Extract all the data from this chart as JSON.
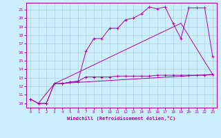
{
  "xlabel": "Windchill (Refroidissement éolien,°C)",
  "bg_color": "#cceeff",
  "grid_color": "#aacccc",
  "line_color": "#aa00aa",
  "xmin": -0.5,
  "xmax": 23.5,
  "ymin": 9.5,
  "ymax": 21.8,
  "yticks": [
    10,
    11,
    12,
    13,
    14,
    15,
    16,
    17,
    18,
    19,
    20,
    21
  ],
  "xticks": [
    0,
    1,
    2,
    3,
    4,
    5,
    6,
    7,
    8,
    9,
    10,
    11,
    12,
    13,
    14,
    15,
    16,
    17,
    18,
    19,
    20,
    21,
    22,
    23
  ],
  "line1_x": [
    0,
    1,
    2,
    3,
    4,
    5,
    6,
    7,
    8,
    9,
    10,
    11,
    12,
    13,
    14,
    15,
    16,
    17,
    18,
    19,
    20,
    21,
    22,
    23
  ],
  "line1_y": [
    10.5,
    10.0,
    10.0,
    12.3,
    12.3,
    12.5,
    12.6,
    16.1,
    17.6,
    17.6,
    18.8,
    18.8,
    19.8,
    20.0,
    20.5,
    21.3,
    21.1,
    21.3,
    19.4,
    17.6,
    21.2,
    21.2,
    21.2,
    15.5
  ],
  "line2_x": [
    0,
    1,
    2,
    3,
    4,
    5,
    6,
    7,
    8,
    9,
    10,
    11,
    12,
    13,
    14,
    15,
    16,
    17,
    18,
    19,
    20,
    21,
    22,
    23
  ],
  "line2_y": [
    10.5,
    10.0,
    10.0,
    12.3,
    12.3,
    12.5,
    12.6,
    13.1,
    13.1,
    13.1,
    13.1,
    13.2,
    13.2,
    13.2,
    13.2,
    13.2,
    13.3,
    13.3,
    13.3,
    13.3,
    13.3,
    13.3,
    13.3,
    13.4
  ],
  "line3_x": [
    1,
    3,
    19,
    23
  ],
  "line3_y": [
    10.0,
    12.3,
    19.4,
    13.4
  ],
  "line4_x": [
    3,
    23
  ],
  "line4_y": [
    12.3,
    13.4
  ]
}
